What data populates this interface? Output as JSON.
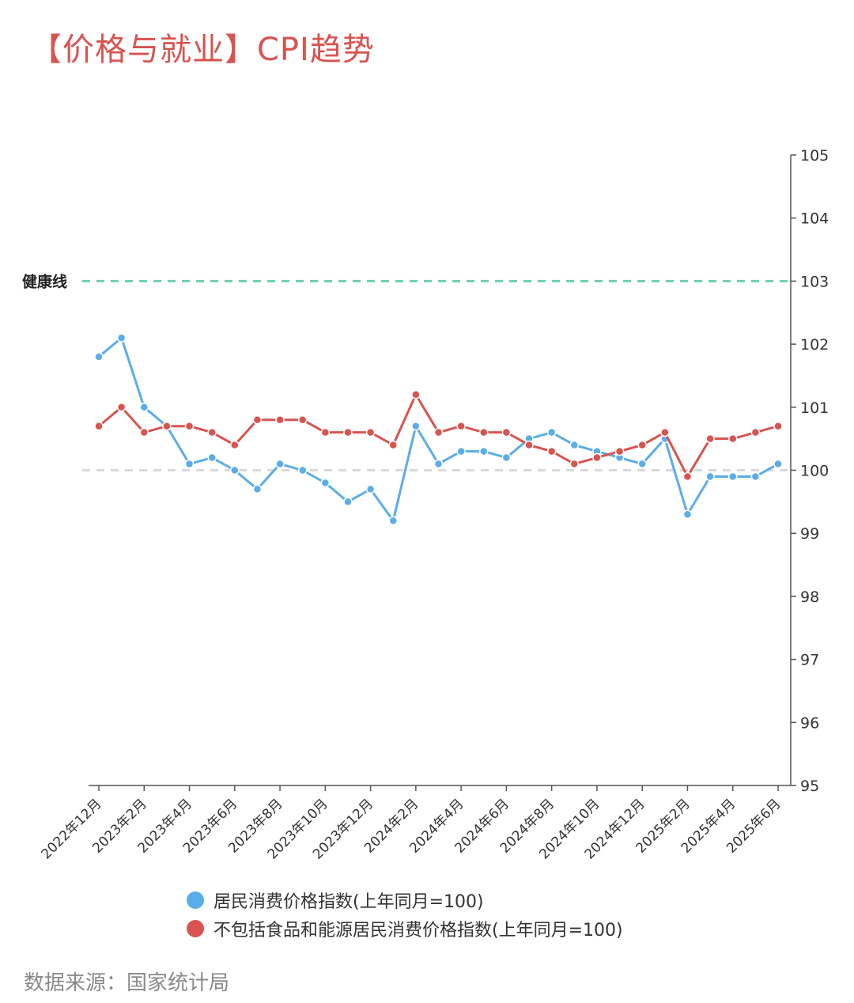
{
  "title": "【价格与就业】CPI趋势",
  "source": "数据来源：国家统计局",
  "colors": {
    "title": "#d9534f",
    "cpi": "#5aade8",
    "core_cpi": "#d9534f",
    "health_line": "#6fd0a8",
    "baseline": "#d9d9d9",
    "axis": "#555555",
    "text": "#333333"
  },
  "chart_data": {
    "type": "line",
    "x": [
      "2022年12月",
      "2023年1月",
      "2023年2月",
      "2023年3月",
      "2023年4月",
      "2023年5月",
      "2023年6月",
      "2023年7月",
      "2023年8月",
      "2023年9月",
      "2023年10月",
      "2023年11月",
      "2023年12月",
      "2024年1月",
      "2024年2月",
      "2024年3月",
      "2024年4月",
      "2024年5月",
      "2024年6月",
      "2024年7月",
      "2024年8月",
      "2024年9月",
      "2024年10月",
      "2024年11月",
      "2024年12月",
      "2025年1月",
      "2025年2月",
      "2025年3月",
      "2025年4月",
      "2025年5月",
      "2025年6月"
    ],
    "tick_labels": [
      "2022年12月",
      "2023年2月",
      "2023年4月",
      "2023年6月",
      "2023年8月",
      "2023年10月",
      "2023年12月",
      "2024年2月",
      "2024年4月",
      "2024年6月",
      "2024年8月",
      "2024年10月",
      "2024年12月",
      "2025年2月",
      "2025年4月",
      "2025年6月"
    ],
    "series": [
      {
        "name": "居民消费价格指数(上年同月=100)",
        "color": "#5aade8",
        "values": [
          101.8,
          102.1,
          101.0,
          100.7,
          100.1,
          100.2,
          100.0,
          99.7,
          100.1,
          100.0,
          99.8,
          99.5,
          99.7,
          99.2,
          100.7,
          100.1,
          100.3,
          100.3,
          100.2,
          100.5,
          100.6,
          100.4,
          100.3,
          100.2,
          100.1,
          100.5,
          99.3,
          99.9,
          99.9,
          99.9,
          100.1
        ]
      },
      {
        "name": "不包括食品和能源居民消费价格指数(上年同月=100)",
        "color": "#d9534f",
        "values": [
          100.7,
          101.0,
          100.6,
          100.7,
          100.7,
          100.6,
          100.4,
          100.8,
          100.8,
          100.8,
          100.6,
          100.6,
          100.6,
          100.4,
          101.2,
          100.6,
          100.7,
          100.6,
          100.6,
          100.4,
          100.3,
          100.1,
          100.2,
          100.3,
          100.4,
          100.6,
          99.9,
          100.5,
          100.5,
          100.6,
          100.7
        ]
      }
    ],
    "ylim": [
      95,
      105
    ],
    "yticks": [
      95,
      96,
      97,
      98,
      99,
      100,
      101,
      102,
      103,
      104,
      105
    ],
    "y_axis_side": "right",
    "reference_lines": [
      {
        "value": 103,
        "label": "健康线",
        "style": "dashed",
        "color": "#6fd0a8"
      },
      {
        "value": 100,
        "label": "",
        "style": "dashed",
        "color": "#d9d9d9"
      }
    ],
    "legend_position": "bottom",
    "grid": false
  }
}
